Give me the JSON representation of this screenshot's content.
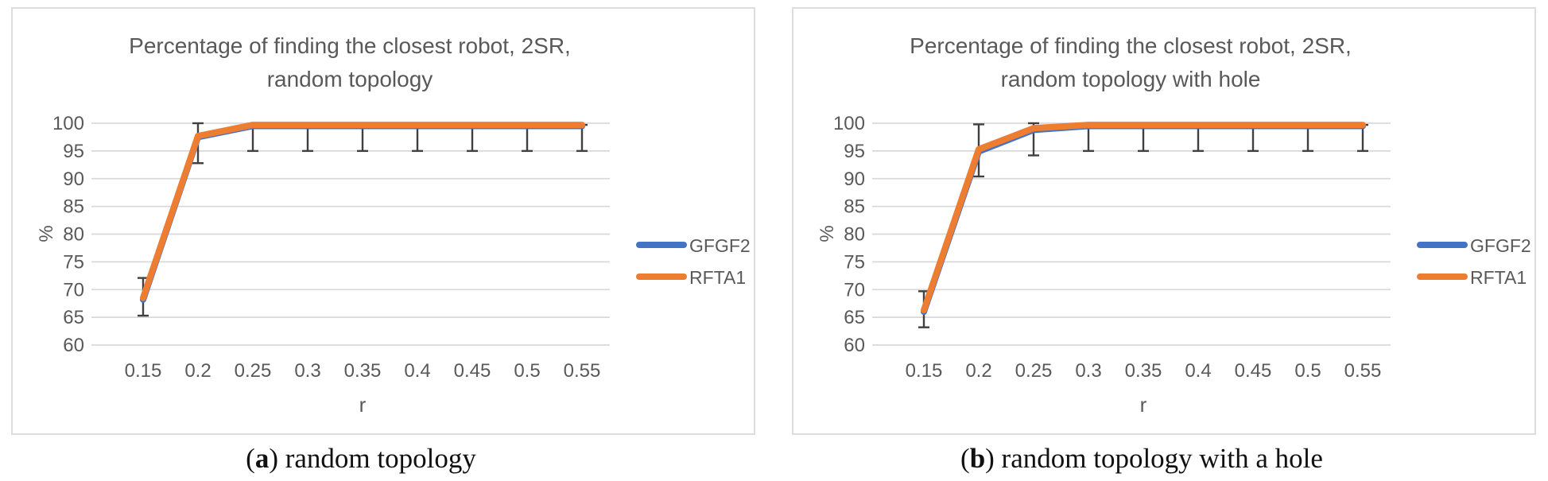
{
  "figure": {
    "background": "#ffffff",
    "panel_border_color": "#dddddd",
    "captions": [
      {
        "prefix": "(",
        "letter": "a",
        "suffix": ") random topology"
      },
      {
        "prefix": "(",
        "letter": "b",
        "suffix": ") random topology with a hole"
      }
    ]
  },
  "chart_data": [
    {
      "type": "line",
      "title": "Percentage of finding the closest robot, 2SR, random topology",
      "title_lines": [
        "Percentage of finding the closest robot, 2SR,",
        "random topology"
      ],
      "xlabel": "r",
      "ylabel": "%",
      "ylim": [
        60,
        100
      ],
      "ytick_step": 5,
      "grid": true,
      "legend_position": "right",
      "categories": [
        "0.15",
        "0.2",
        "0.25",
        "0.3",
        "0.35",
        "0.4",
        "0.45",
        "0.5",
        "0.55"
      ],
      "series": [
        {
          "name": "GFGF2",
          "color": "#4472C4",
          "values": [
            68.2,
            97.5,
            99.5,
            99.5,
            99.5,
            99.5,
            99.5,
            99.5,
            99.5
          ]
        },
        {
          "name": "RFTA1",
          "color": "#ED7D31",
          "values": [
            68.5,
            97.7,
            99.7,
            99.7,
            99.7,
            99.7,
            99.7,
            99.7,
            99.7
          ],
          "error_bars": {
            "low": [
              65.3,
              92.8,
              95.0,
              95.0,
              95.0,
              95.0,
              95.0,
              95.0,
              95.0
            ],
            "high": [
              72.1,
              100.0,
              99.7,
              99.7,
              99.7,
              99.7,
              99.7,
              99.7,
              99.7
            ]
          }
        }
      ],
      "error_bar_color": "#404040",
      "text_color": "#595959",
      "gridline_color": "#d9d9d9"
    },
    {
      "type": "line",
      "title": "Percentage of finding the closest robot, 2SR, random topology with hole",
      "title_lines": [
        "Percentage of finding the closest robot, 2SR,",
        "random topology with hole"
      ],
      "xlabel": "r",
      "ylabel": "%",
      "ylim": [
        60,
        100
      ],
      "ytick_step": 5,
      "grid": true,
      "legend_position": "right",
      "categories": [
        "0.15",
        "0.2",
        "0.25",
        "0.3",
        "0.35",
        "0.4",
        "0.45",
        "0.5",
        "0.55"
      ],
      "series": [
        {
          "name": "GFGF2",
          "color": "#4472C4",
          "values": [
            66.0,
            94.9,
            98.8,
            99.5,
            99.5,
            99.5,
            99.5,
            99.5,
            99.5
          ]
        },
        {
          "name": "RFTA1",
          "color": "#ED7D31",
          "values": [
            66.3,
            95.3,
            99.1,
            99.7,
            99.7,
            99.7,
            99.7,
            99.7,
            99.7
          ],
          "error_bars": {
            "low": [
              63.2,
              90.4,
              94.2,
              95.0,
              95.0,
              95.0,
              95.0,
              95.0,
              95.0
            ],
            "high": [
              69.7,
              99.8,
              100.0,
              99.7,
              99.7,
              99.7,
              99.7,
              99.7,
              99.7
            ]
          }
        }
      ],
      "error_bar_color": "#404040",
      "text_color": "#595959",
      "gridline_color": "#d9d9d9"
    }
  ]
}
